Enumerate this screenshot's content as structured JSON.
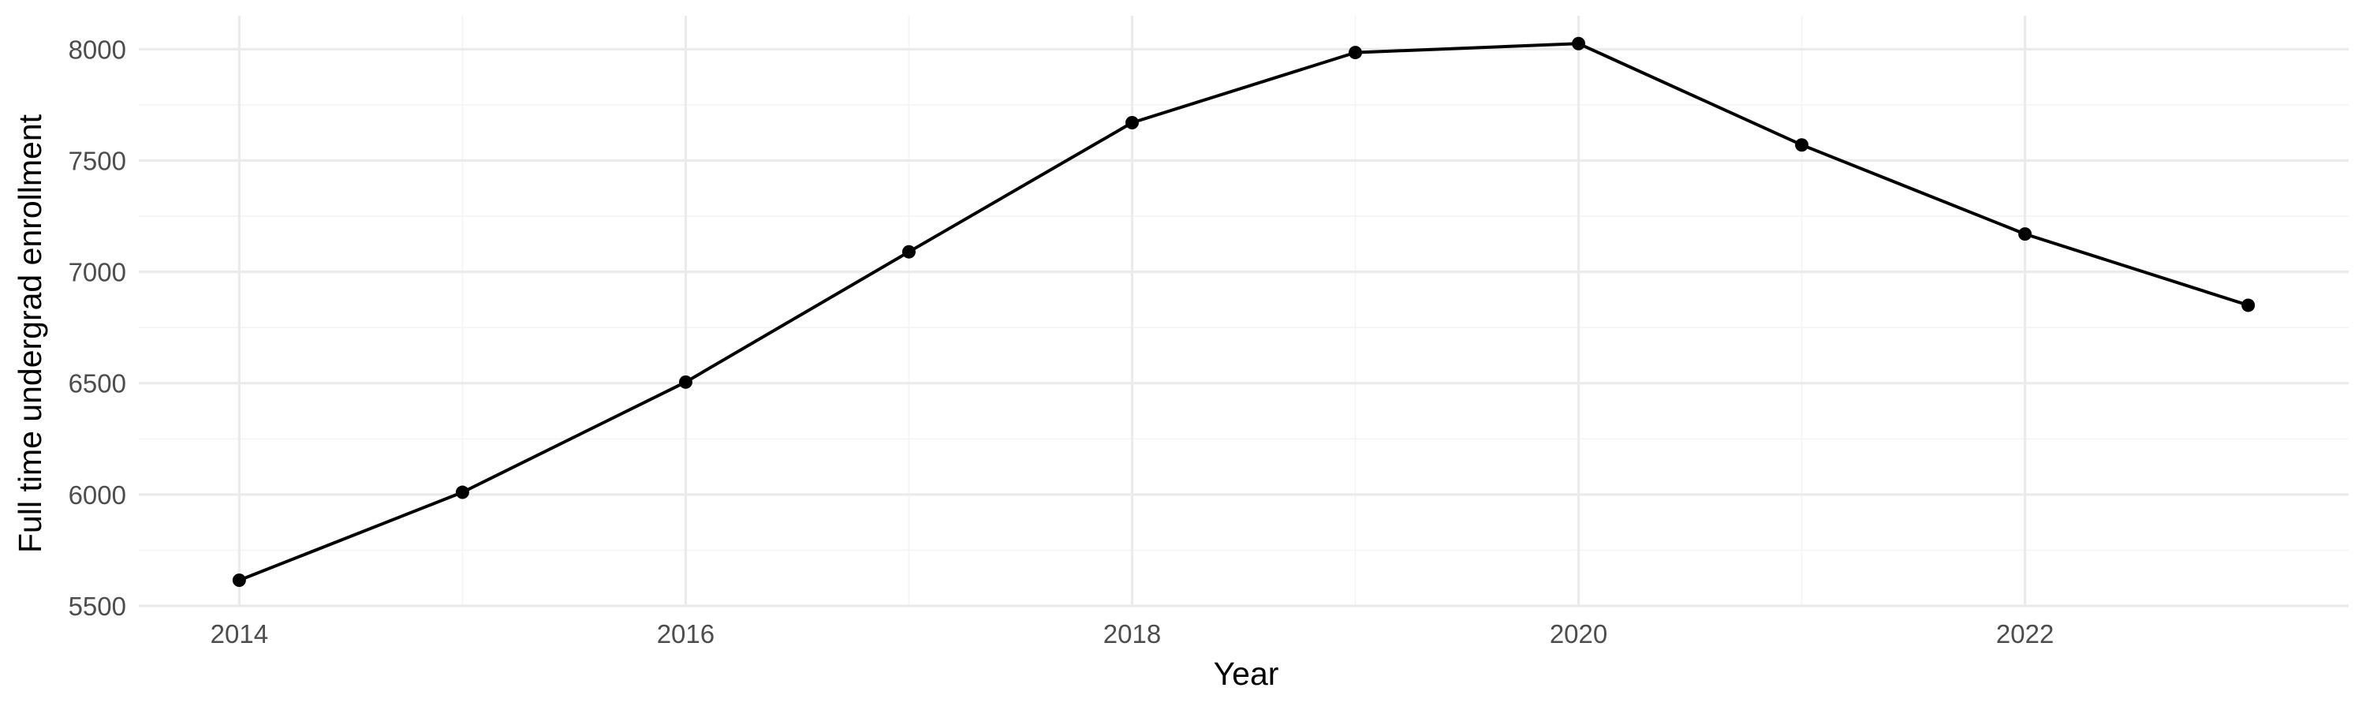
{
  "chart_data": {
    "type": "line",
    "title": "",
    "xlabel": "Year",
    "ylabel": "Full time undergrad enrollment",
    "x": [
      2014,
      2015,
      2016,
      2017,
      2018,
      2019,
      2020,
      2021,
      2022,
      2023
    ],
    "series": [
      {
        "values": [
          5615,
          6010,
          6505,
          7090,
          7670,
          7985,
          8025,
          7570,
          7170,
          6850
        ],
        "color": "#000000"
      }
    ],
    "xlim": [
      2013.55,
      2023.45
    ],
    "ylim": [
      5500,
      8150
    ],
    "xticks": [
      2014,
      2016,
      2018,
      2020,
      2022
    ],
    "yticks": [
      5500,
      6000,
      6500,
      7000,
      7500,
      8000
    ],
    "grid": true,
    "legend": "none"
  }
}
